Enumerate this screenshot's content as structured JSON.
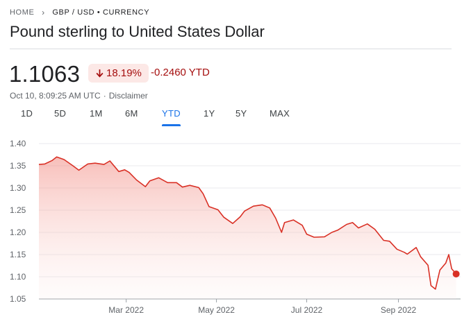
{
  "breadcrumb": {
    "home": "HOME",
    "trail": "GBP / USD • CURRENCY"
  },
  "title": "Pound sterling to United States Dollar",
  "quote": {
    "price": "1.1063",
    "percent": "18.19%",
    "change": "-0.2460 YTD",
    "timestamp": "Oct 10, 8:09:25 AM UTC",
    "separator": "·",
    "disclaimer": "Disclaimer"
  },
  "colors": {
    "negative": "#d93025",
    "negative_dark": "#a50e0e",
    "badge_bg": "#fce8e6",
    "accent": "#1a73e8"
  },
  "tabs": [
    {
      "label": "1D",
      "active": false
    },
    {
      "label": "5D",
      "active": false
    },
    {
      "label": "1M",
      "active": false
    },
    {
      "label": "6M",
      "active": false
    },
    {
      "label": "YTD",
      "active": true
    },
    {
      "label": "1Y",
      "active": false
    },
    {
      "label": "5Y",
      "active": false
    },
    {
      "label": "MAX",
      "active": false
    }
  ],
  "chart_data": {
    "type": "area",
    "title": "",
    "xlabel": "",
    "ylabel": "",
    "ylim": [
      1.05,
      1.4
    ],
    "yticks": [
      "1.40",
      "1.35",
      "1.30",
      "1.25",
      "1.20",
      "1.15",
      "1.10",
      "1.05"
    ],
    "xticks": [
      {
        "label": "Mar 2022",
        "date": "2022-03-01"
      },
      {
        "label": "May 2022",
        "date": "2022-05-01"
      },
      {
        "label": "Jul 2022",
        "date": "2022-07-01"
      },
      {
        "label": "Sep 2022",
        "date": "2022-09-01"
      }
    ],
    "grid": true,
    "series": [
      {
        "x": [
          "2022-01-01",
          "2022-01-05",
          "2022-01-10",
          "2022-01-13",
          "2022-01-18",
          "2022-01-24",
          "2022-01-28",
          "2022-02-03",
          "2022-02-08",
          "2022-02-14",
          "2022-02-18",
          "2022-02-24",
          "2022-02-28",
          "2022-03-03",
          "2022-03-08",
          "2022-03-14",
          "2022-03-17",
          "2022-03-23",
          "2022-03-29",
          "2022-04-04",
          "2022-04-08",
          "2022-04-13",
          "2022-04-19",
          "2022-04-22",
          "2022-04-26",
          "2022-05-02",
          "2022-05-06",
          "2022-05-12",
          "2022-05-17",
          "2022-05-20",
          "2022-05-26",
          "2022-06-01",
          "2022-06-06",
          "2022-06-10",
          "2022-06-14",
          "2022-06-16",
          "2022-06-22",
          "2022-06-28",
          "2022-07-01",
          "2022-07-06",
          "2022-07-13",
          "2022-07-18",
          "2022-07-22",
          "2022-07-28",
          "2022-08-01",
          "2022-08-05",
          "2022-08-11",
          "2022-08-16",
          "2022-08-22",
          "2022-08-26",
          "2022-08-31",
          "2022-09-05",
          "2022-09-07",
          "2022-09-13",
          "2022-09-16",
          "2022-09-21",
          "2022-09-23",
          "2022-09-26",
          "2022-09-29",
          "2022-10-03",
          "2022-10-05",
          "2022-10-07",
          "2022-10-10"
        ],
        "y": [
          1.353,
          1.354,
          1.362,
          1.37,
          1.364,
          1.35,
          1.34,
          1.354,
          1.356,
          1.353,
          1.361,
          1.337,
          1.341,
          1.335,
          1.318,
          1.303,
          1.316,
          1.323,
          1.312,
          1.312,
          1.302,
          1.306,
          1.301,
          1.287,
          1.258,
          1.251,
          1.234,
          1.22,
          1.235,
          1.248,
          1.259,
          1.262,
          1.255,
          1.232,
          1.2,
          1.222,
          1.228,
          1.216,
          1.196,
          1.189,
          1.19,
          1.2,
          1.205,
          1.218,
          1.222,
          1.21,
          1.219,
          1.207,
          1.182,
          1.18,
          1.162,
          1.155,
          1.151,
          1.166,
          1.145,
          1.126,
          1.08,
          1.072,
          1.115,
          1.131,
          1.15,
          1.118,
          1.1063
        ]
      }
    ]
  }
}
